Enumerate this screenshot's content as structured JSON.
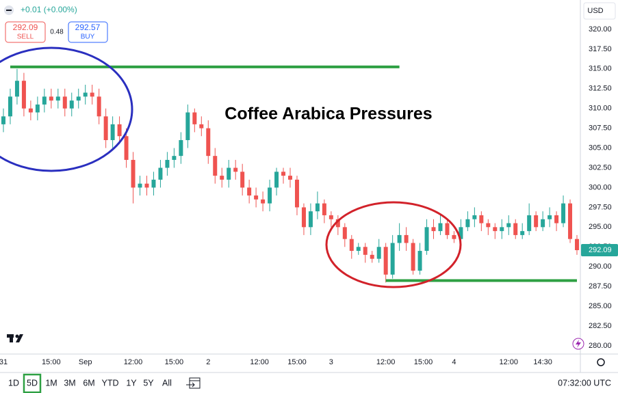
{
  "header": {
    "change": "+0.01 (+0.00%)",
    "sell_price": "292.09",
    "sell_label": "SELL",
    "spread": "0.48",
    "buy_price": "292.57",
    "buy_label": "BUY",
    "currency": "USD"
  },
  "chart_data": {
    "type": "candlestick",
    "title": "Coffee Arabica Pressures",
    "x": [
      0,
      1,
      2,
      3,
      4,
      5,
      6,
      7,
      8,
      9,
      10,
      11,
      12,
      13,
      14,
      15,
      16,
      17,
      18,
      19,
      20,
      21,
      22,
      23,
      24,
      25,
      26,
      27,
      28,
      29,
      30,
      31,
      32,
      33,
      34,
      35,
      36,
      37,
      38,
      39,
      40,
      41,
      42,
      43,
      44,
      45,
      46,
      47,
      48,
      49,
      50,
      51,
      52,
      53,
      54,
      55,
      56,
      57,
      58,
      59,
      60,
      61,
      62,
      63,
      64,
      65,
      66,
      67,
      68,
      69,
      70,
      71,
      72,
      73,
      74,
      75,
      76,
      77,
      78,
      79,
      80,
      81,
      82,
      83,
      84
    ],
    "open": [
      308,
      309,
      311.5,
      313.5,
      310,
      309.5,
      310.5,
      311.5,
      311,
      311.5,
      310,
      311,
      311.5,
      312,
      311.5,
      309,
      306,
      308,
      306.5,
      303.5,
      300,
      300.5,
      300,
      301,
      302.5,
      303.5,
      304,
      306,
      309.5,
      308,
      307.5,
      304,
      301.5,
      301,
      302.5,
      302,
      300,
      299,
      298.5,
      298,
      300,
      302,
      301.5,
      301,
      297.5,
      295,
      297,
      298,
      296.5,
      296,
      295,
      293.5,
      292,
      292.5,
      291.5,
      291,
      292.5,
      289,
      293,
      294,
      293,
      289.5,
      292,
      295,
      294.5,
      295.5,
      294,
      293.5,
      295,
      296,
      296.5,
      295.5,
      295,
      294.5,
      295,
      295.5,
      294,
      294.5,
      296.5,
      295,
      296,
      296.5,
      295.5,
      298,
      293.5
    ],
    "high": [
      310,
      312.5,
      315,
      314.5,
      311,
      311.5,
      312.5,
      312.5,
      312.5,
      312.5,
      312,
      312.5,
      313,
      313,
      312.5,
      310,
      309,
      309,
      307.5,
      304.5,
      301.5,
      301.5,
      302,
      303.5,
      304.5,
      305,
      307,
      310.5,
      310,
      309,
      308.5,
      305,
      302.5,
      303.5,
      303.5,
      303,
      301,
      300,
      299.5,
      301,
      302.5,
      302.5,
      302.5,
      301.5,
      298,
      298,
      299.5,
      298.5,
      297,
      296.5,
      295.5,
      294,
      293,
      293,
      292,
      293.5,
      293,
      294,
      295.5,
      295,
      293.5,
      293,
      296,
      296,
      296.5,
      296,
      294.5,
      296,
      297,
      297.5,
      297,
      296,
      295.5,
      296,
      296.5,
      296,
      295.5,
      298,
      297,
      297,
      297.5,
      297,
      299,
      298.5,
      294
    ],
    "low": [
      307,
      308,
      310.5,
      309,
      308.5,
      308.5,
      309.5,
      310,
      310,
      309,
      309,
      310,
      310.5,
      310.5,
      308,
      305,
      305,
      305.5,
      302.5,
      298,
      299,
      299,
      299,
      300,
      301.5,
      302.5,
      303,
      305,
      307,
      306.5,
      303,
      300.5,
      300,
      300,
      301,
      299,
      298,
      297.5,
      297,
      297,
      299,
      300.5,
      300,
      296.5,
      294,
      294,
      296,
      295.5,
      295,
      294,
      292.5,
      291,
      291.5,
      290.5,
      290.5,
      290.5,
      288,
      288.5,
      292,
      292,
      289,
      289,
      291.5,
      293.5,
      294,
      293.5,
      293,
      293,
      294.5,
      295,
      294.5,
      294,
      293.5,
      293.5,
      294,
      293.5,
      293.5,
      294,
      294.5,
      294.5,
      295,
      294.5,
      295,
      293,
      291.5
    ],
    "close": [
      309,
      311.5,
      313.5,
      310,
      309.5,
      310.5,
      311.5,
      311,
      311.5,
      310,
      311,
      311.5,
      312,
      311.5,
      309,
      306,
      308,
      306.5,
      303.5,
      300,
      300.5,
      300,
      301,
      302.5,
      303.5,
      304,
      306,
      309.5,
      308,
      307.5,
      304,
      301.5,
      301,
      302.5,
      302,
      300,
      299,
      298.5,
      298,
      300,
      302,
      301.5,
      301,
      297.5,
      295,
      297,
      298,
      296.5,
      296,
      295,
      293.5,
      292,
      292.5,
      291.5,
      291,
      292.5,
      289,
      293,
      294,
      293,
      289.5,
      292,
      295,
      294.5,
      295.5,
      294,
      293.5,
      295,
      296,
      296.5,
      295.5,
      295,
      294.5,
      295,
      295.5,
      294,
      294.5,
      296.5,
      295,
      296,
      296.5,
      295.5,
      298,
      293.5,
      292.09
    ],
    "up_color": "#26a69a",
    "down_color": "#ef5350",
    "price_tag": "292.09",
    "levels": [
      {
        "value": 315.25,
        "x": [
          1,
          58
        ],
        "color": "#2ea043"
      },
      {
        "value": 288.25,
        "x": [
          56,
          84
        ],
        "color": "#2ea043"
      }
    ],
    "xlim": [
      -0.5,
      84.5
    ],
    "xticks": [
      {
        "value": 0,
        "label": "31"
      },
      {
        "value": 7,
        "label": "15:00"
      },
      {
        "value": 12,
        "label": "Sep"
      },
      {
        "value": 19,
        "label": "12:00"
      },
      {
        "value": 25,
        "label": "15:00"
      },
      {
        "value": 30,
        "label": "2"
      },
      {
        "value": 37.5,
        "label": "12:00"
      },
      {
        "value": 43,
        "label": "15:00"
      },
      {
        "value": 48,
        "label": "3"
      },
      {
        "value": 56,
        "label": "12:00"
      },
      {
        "value": 61.5,
        "label": "15:00"
      },
      {
        "value": 66,
        "label": "4"
      },
      {
        "value": 74,
        "label": "12:00"
      },
      {
        "value": 79,
        "label": "14:30"
      }
    ],
    "ylim": [
      278.96,
      323.71
    ],
    "yticks": [
      {
        "value": 280,
        "label": "280.00"
      },
      {
        "value": 282.5,
        "label": "282.50"
      },
      {
        "value": 285,
        "label": "285.00"
      },
      {
        "value": 287.5,
        "label": "287.50"
      },
      {
        "value": 290,
        "label": "290.00"
      },
      {
        "value": 292.5,
        "label": "292.50"
      },
      {
        "value": 295,
        "label": "295.00"
      },
      {
        "value": 297.5,
        "label": "297.50"
      },
      {
        "value": 300,
        "label": "300.00"
      },
      {
        "value": 302.5,
        "label": "302.50"
      },
      {
        "value": 305,
        "label": "305.00"
      },
      {
        "value": 307.5,
        "label": "307.50"
      },
      {
        "value": 310,
        "label": "310.00"
      },
      {
        "value": 312.5,
        "label": "312.50"
      },
      {
        "value": 315,
        "label": "315.00"
      },
      {
        "value": 317.5,
        "label": "317.50"
      },
      {
        "value": 320,
        "label": "320.00"
      }
    ]
  },
  "toolbar": {
    "ranges": [
      "1D",
      "5D",
      "1M",
      "3M",
      "6M",
      "YTD",
      "1Y",
      "5Y",
      "All"
    ],
    "active": "5D",
    "clock": "07:32:00 UTC"
  }
}
